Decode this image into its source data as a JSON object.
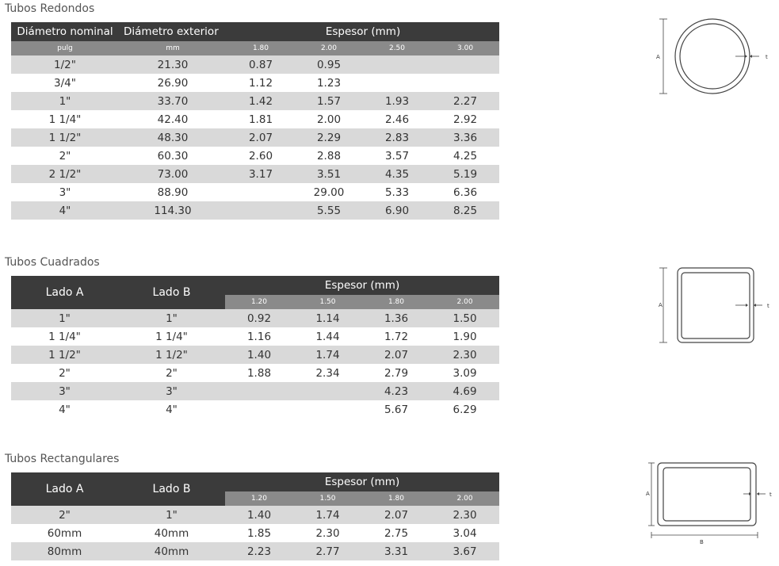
{
  "redondos": {
    "title": "Tubos Redondos",
    "col_headers": [
      "Diámetro nominal",
      "Diámetro exterior"
    ],
    "espesor_label": "Espesor (mm)",
    "sub_units": [
      "pulg",
      "mm"
    ],
    "thicknesses": [
      "1.80",
      "2.00",
      "2.50",
      "3.00"
    ],
    "rows": [
      [
        "1/2\"",
        "21.30",
        "0.87",
        "0.95",
        "",
        ""
      ],
      [
        "3/4\"",
        "26.90",
        "1.12",
        "1.23",
        "",
        ""
      ],
      [
        "1\"",
        "33.70",
        "1.42",
        "1.57",
        "1.93",
        "2.27"
      ],
      [
        "1 1/4\"",
        "42.40",
        "1.81",
        "2.00",
        "2.46",
        "2.92"
      ],
      [
        "1 1/2\"",
        "48.30",
        "2.07",
        "2.29",
        "2.83",
        "3.36"
      ],
      [
        "2\"",
        "60.30",
        "2.60",
        "2.88",
        "3.57",
        "4.25"
      ],
      [
        "2 1/2\"",
        "73.00",
        "3.17",
        "3.51",
        "4.35",
        "5.19"
      ],
      [
        "3\"",
        "88.90",
        "",
        "29.00",
        "5.33",
        "6.36"
      ],
      [
        "4\"",
        "114.30",
        "",
        "5.55",
        "6.90",
        "8.25"
      ]
    ]
  },
  "cuadrados": {
    "title": "Tubos Cuadrados",
    "col_headers": [
      "Lado A",
      "Lado B"
    ],
    "espesor_label": "Espesor (mm)",
    "thicknesses": [
      "1.20",
      "1.50",
      "1.80",
      "2.00"
    ],
    "rows": [
      [
        "1\"",
        "1\"",
        "0.92",
        "1.14",
        "1.36",
        "1.50"
      ],
      [
        "1 1/4\"",
        "1 1/4\"",
        "1.16",
        "1.44",
        "1.72",
        "1.90"
      ],
      [
        "1 1/2\"",
        "1 1/2\"",
        "1.40",
        "1.74",
        "2.07",
        "2.30"
      ],
      [
        "2\"",
        "2\"",
        "1.88",
        "2.34",
        "2.79",
        "3.09"
      ],
      [
        "3\"",
        "3\"",
        "",
        "",
        "4.23",
        "4.69"
      ],
      [
        "4\"",
        "4\"",
        "",
        "",
        "5.67",
        "6.29"
      ]
    ]
  },
  "rectangulares": {
    "title": "Tubos Rectangulares",
    "col_headers": [
      "Lado A",
      "Lado B"
    ],
    "espesor_label": "Espesor (mm)",
    "thicknesses": [
      "1.20",
      "1.50",
      "1.80",
      "2.00"
    ],
    "rows": [
      [
        "2\"",
        "1\"",
        "1.40",
        "1.74",
        "2.07",
        "2.30"
      ],
      [
        "60mm",
        "40mm",
        "1.85",
        "2.30",
        "2.75",
        "3.04"
      ],
      [
        "80mm",
        "40mm",
        "2.23",
        "2.77",
        "3.31",
        "3.67"
      ]
    ]
  },
  "diagrams": {
    "label_a": "A",
    "label_b": "B",
    "label_t": "t"
  }
}
